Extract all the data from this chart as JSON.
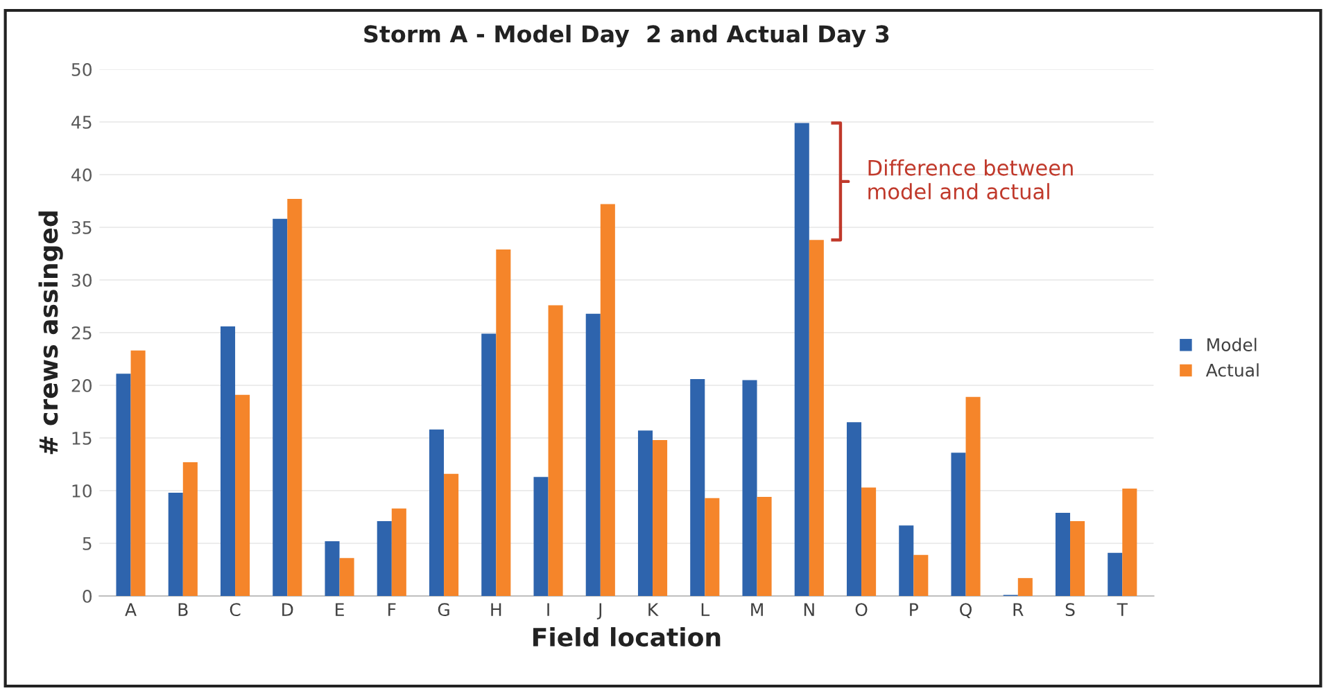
{
  "chart_data": {
    "type": "bar",
    "title": "Storm A - Model Day  2 and Actual Day 3",
    "xlabel": "Field location",
    "ylabel": "# crews assinged",
    "categories": [
      "A",
      "B",
      "C",
      "D",
      "E",
      "F",
      "G",
      "H",
      "I",
      "J",
      "K",
      "L",
      "M",
      "N",
      "O",
      "P",
      "Q",
      "R",
      "S",
      "T"
    ],
    "series": [
      {
        "name": "Model",
        "color": "#2e64ad",
        "values": [
          21.1,
          9.8,
          25.6,
          35.8,
          5.2,
          7.1,
          15.8,
          24.9,
          11.3,
          26.8,
          15.7,
          20.6,
          20.5,
          44.9,
          16.5,
          6.7,
          13.6,
          0.1,
          7.9,
          4.1
        ]
      },
      {
        "name": "Actual",
        "color": "#f5852a",
        "values": [
          23.3,
          12.7,
          19.1,
          37.7,
          3.6,
          8.3,
          11.6,
          32.9,
          27.6,
          37.2,
          14.8,
          9.3,
          9.4,
          33.8,
          10.3,
          3.9,
          18.9,
          1.7,
          7.1,
          10.2
        ]
      }
    ],
    "ylim": [
      0,
      50
    ],
    "yticks": [
      0,
      5,
      10,
      15,
      20,
      25,
      30,
      35,
      40,
      45,
      50
    ],
    "grid": "y",
    "legend": "right",
    "annotations": [
      "Difference between\nmodel and actual"
    ]
  }
}
